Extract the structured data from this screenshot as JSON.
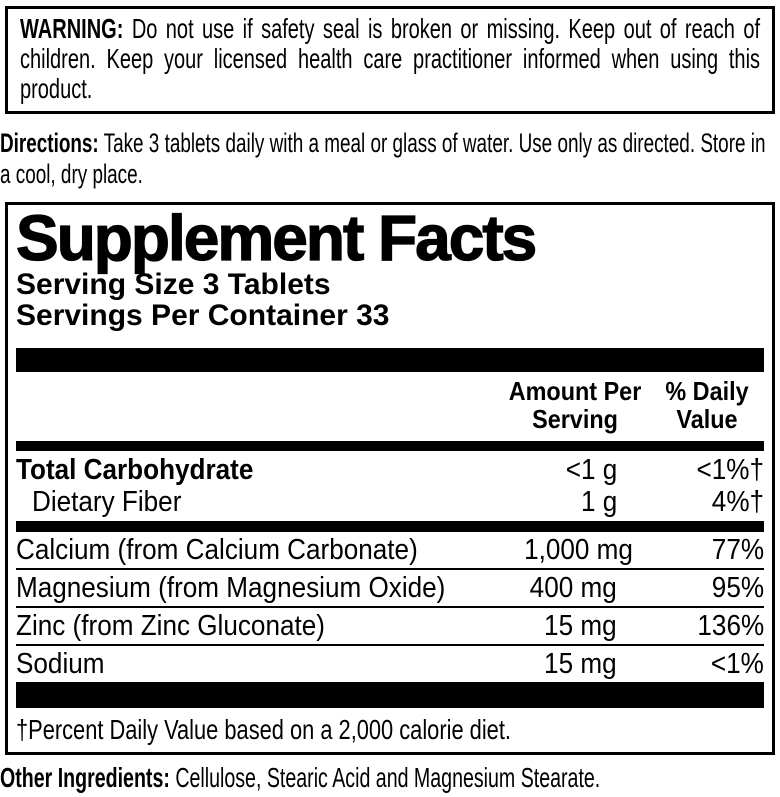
{
  "colors": {
    "ink": "#000000",
    "paper": "#ffffff"
  },
  "warning": {
    "label": "WARNING:",
    "text": "Do not use if safety seal is broken or missing. Keep out of reach of children. Keep your licensed health care practitioner informed when using this product."
  },
  "directions": {
    "label": "Directions:",
    "text": "Take 3 tablets daily with a meal or glass of water. Use only as directed. Store in a cool, dry place."
  },
  "panel": {
    "title": "Supplement Facts",
    "serving_size": "Serving Size 3 Tablets",
    "servings_per_container": "Servings Per Container 33",
    "columns": {
      "amount": "Amount Per Serving",
      "dv": "% Daily Value"
    },
    "carb_rows": [
      {
        "name": "Total Carbohydrate",
        "amount": "<1 g",
        "dv": "<1%†"
      },
      {
        "name": "Dietary Fiber",
        "amount": "1 g",
        "dv": "4%†"
      }
    ],
    "mineral_rows": [
      {
        "name": "Calcium (from Calcium Carbonate)",
        "amount": "1,000 mg",
        "dv": "77%"
      },
      {
        "name": "Magnesium (from Magnesium Oxide)",
        "amount": "400 mg",
        "dv": "95%"
      },
      {
        "name": "Zinc (from Zinc Gluconate)",
        "amount": "15 mg",
        "dv": "136%"
      },
      {
        "name": "Sodium",
        "amount": "15 mg",
        "dv": "<1%"
      }
    ],
    "footnote": "†Percent Daily Value based on a 2,000 calorie diet."
  },
  "other_ingredients": {
    "label": "Other Ingredients:",
    "text": "Cellulose, Stearic Acid and Magnesium Stearate."
  }
}
